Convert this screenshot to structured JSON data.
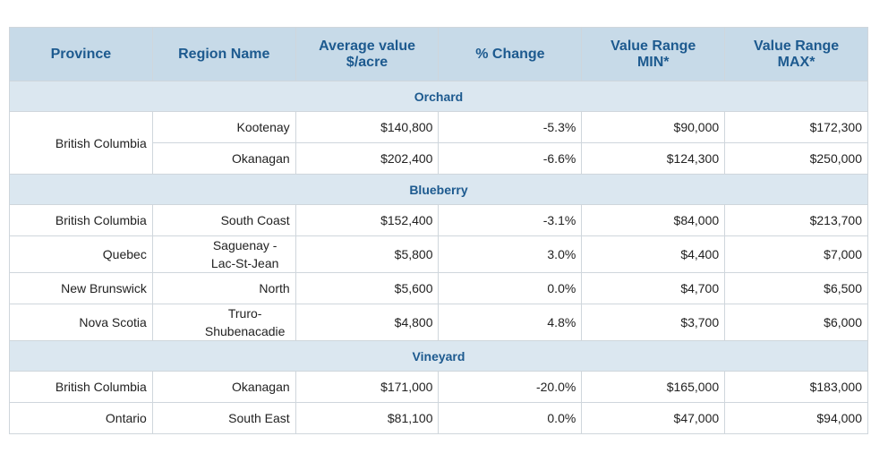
{
  "table": {
    "columns": [
      "Province",
      "Region Name",
      "Average value $/acre",
      "% Change",
      "Value Range MIN*",
      "Value Range MAX*"
    ],
    "sections": [
      {
        "title": "Orchard",
        "groups": [
          {
            "province": "British Columbia",
            "rows": [
              [
                "Kootenay",
                "$140,800",
                "-5.3%",
                "$90,000",
                "$172,300"
              ],
              [
                "Okanagan",
                "$202,400",
                "-6.6%",
                "$124,300",
                "$250,000"
              ]
            ]
          }
        ]
      },
      {
        "title": "Blueberry",
        "groups": [
          {
            "province": "British Columbia",
            "rows": [
              [
                "South Coast",
                "$152,400",
                "-3.1%",
                "$84,000",
                "$213,700"
              ]
            ]
          },
          {
            "province": "Quebec",
            "rows": [
              [
                "Saguenay - Lac-St-Jean",
                "$5,800",
                "3.0%",
                "$4,400",
                "$7,000"
              ]
            ]
          },
          {
            "province": "New Brunswick",
            "rows": [
              [
                "North",
                "$5,600",
                "0.0%",
                "$4,700",
                "$6,500"
              ]
            ]
          },
          {
            "province": "Nova Scotia",
            "rows": [
              [
                "Truro-Shubenacadie",
                "$4,800",
                "4.8%",
                "$3,700",
                "$6,000"
              ]
            ]
          }
        ]
      },
      {
        "title": "Vineyard",
        "groups": [
          {
            "province": "British Columbia",
            "rows": [
              [
                "Okanagan",
                "$171,000",
                "-20.0%",
                "$165,000",
                "$183,000"
              ]
            ]
          },
          {
            "province": "Ontario",
            "rows": [
              [
                "South East",
                "$81,100",
                "0.0%",
                "$47,000",
                "$94,000"
              ]
            ]
          }
        ]
      }
    ]
  }
}
